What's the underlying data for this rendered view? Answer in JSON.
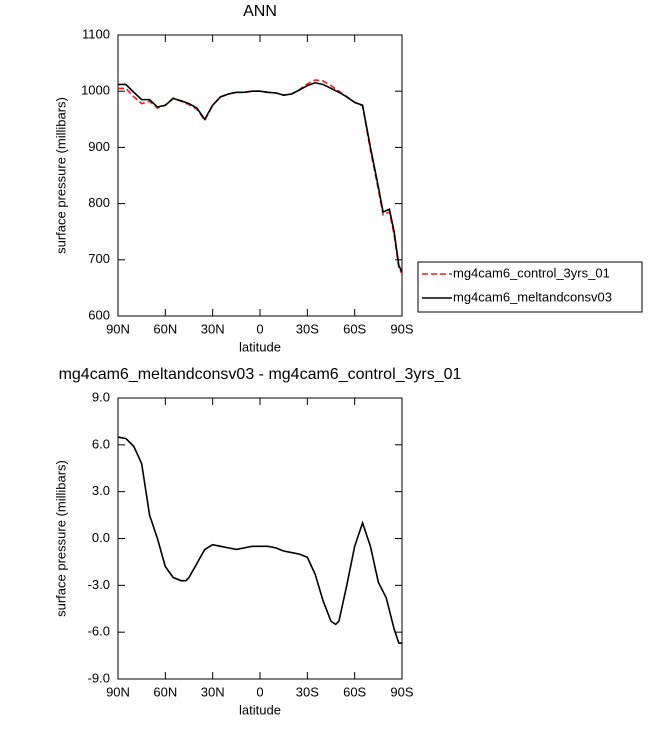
{
  "chart_data": [
    {
      "type": "line",
      "title": "ANN",
      "xlabel": "latitude",
      "ylabel": "surface pressure (millibars)",
      "xlim": [
        90,
        -90
      ],
      "ylim": [
        600,
        1100
      ],
      "xticks": [
        {
          "value": 90,
          "label": "90N"
        },
        {
          "value": 60,
          "label": "60N"
        },
        {
          "value": 30,
          "label": "30N"
        },
        0,
        {
          "value": -30,
          "label": "30S"
        },
        {
          "value": -60,
          "label": "60S"
        },
        {
          "value": -90,
          "label": "90S"
        }
      ],
      "yticks": [
        600,
        700,
        800,
        900,
        1000,
        1100
      ],
      "x": [
        90,
        85,
        80,
        75,
        70,
        65,
        60,
        55,
        50,
        45,
        40,
        35,
        30,
        25,
        20,
        15,
        10,
        5,
        0,
        -5,
        -10,
        -15,
        -20,
        -25,
        -30,
        -35,
        -40,
        -45,
        -50,
        -55,
        -60,
        -65,
        -70,
        -75,
        -78,
        -82,
        -85,
        -88,
        -90
      ],
      "series": [
        {
          "name": "mg4cam6_control_3yrs_01",
          "color": "#e8201c",
          "dash": true,
          "values": [
            1005,
            1005,
            990,
            978,
            982,
            970,
            975,
            988,
            982,
            976,
            968,
            948,
            975,
            990,
            995,
            998,
            998,
            1000,
            1000,
            998,
            997,
            993,
            995,
            1003,
            1013,
            1020,
            1018,
            1010,
            1000,
            990,
            980,
            974,
            895,
            825,
            780,
            785,
            745,
            685,
            675
          ]
        },
        {
          "name": "mg4cam6_meltandconsv03",
          "color": "#000000",
          "dash": false,
          "values": [
            1012,
            1012,
            998,
            985,
            985,
            972,
            975,
            987,
            983,
            978,
            970,
            950,
            975,
            990,
            995,
            998,
            998,
            1000,
            1000,
            998,
            997,
            993,
            995,
            1002,
            1010,
            1015,
            1012,
            1005,
            998,
            990,
            980,
            975,
            900,
            830,
            785,
            790,
            750,
            690,
            678
          ]
        }
      ]
    },
    {
      "type": "line",
      "title": "mg4cam6_meltandconsv03 - mg4cam6_control_3yrs_01",
      "xlabel": "latitude",
      "ylabel": "surface pressure (millibars)",
      "xlim": [
        90,
        -90
      ],
      "ylim": [
        -9,
        9
      ],
      "xticks": [
        {
          "value": 90,
          "label": "90N"
        },
        {
          "value": 60,
          "label": "60N"
        },
        {
          "value": 30,
          "label": "30N"
        },
        0,
        {
          "value": -30,
          "label": "30S"
        },
        {
          "value": -60,
          "label": "60S"
        },
        {
          "value": -90,
          "label": "90S"
        }
      ],
      "yticks": [
        {
          "value": -9,
          "label": "-9.0"
        },
        {
          "value": -6,
          "label": "-6.0"
        },
        {
          "value": -3,
          "label": "-3.0"
        },
        {
          "value": 0,
          "label": "0.0"
        },
        {
          "value": 3,
          "label": "3.0"
        },
        {
          "value": 6,
          "label": "6.0"
        },
        {
          "value": 9,
          "label": "9.0"
        }
      ],
      "x": [
        90,
        85,
        80,
        75,
        70,
        65,
        60,
        55,
        50,
        47,
        45,
        40,
        35,
        30,
        25,
        20,
        15,
        10,
        5,
        0,
        -5,
        -10,
        -15,
        -20,
        -25,
        -30,
        -35,
        -40,
        -45,
        -48,
        -50,
        -55,
        -60,
        -65,
        -70,
        -75,
        -80,
        -85,
        -88,
        -90
      ],
      "color": "#000000",
      "values": [
        6.5,
        6.4,
        5.9,
        4.8,
        1.5,
        0.0,
        -1.8,
        -2.5,
        -2.7,
        -2.7,
        -2.5,
        -1.6,
        -0.7,
        -0.4,
        -0.5,
        -0.6,
        -0.7,
        -0.6,
        -0.5,
        -0.5,
        -0.5,
        -0.6,
        -0.8,
        -0.9,
        -1.0,
        -1.2,
        -2.3,
        -4.0,
        -5.3,
        -5.5,
        -5.3,
        -3.0,
        -0.5,
        1.0,
        -0.5,
        -2.8,
        -3.8,
        -5.8,
        -6.7,
        -6.7
      ]
    }
  ]
}
